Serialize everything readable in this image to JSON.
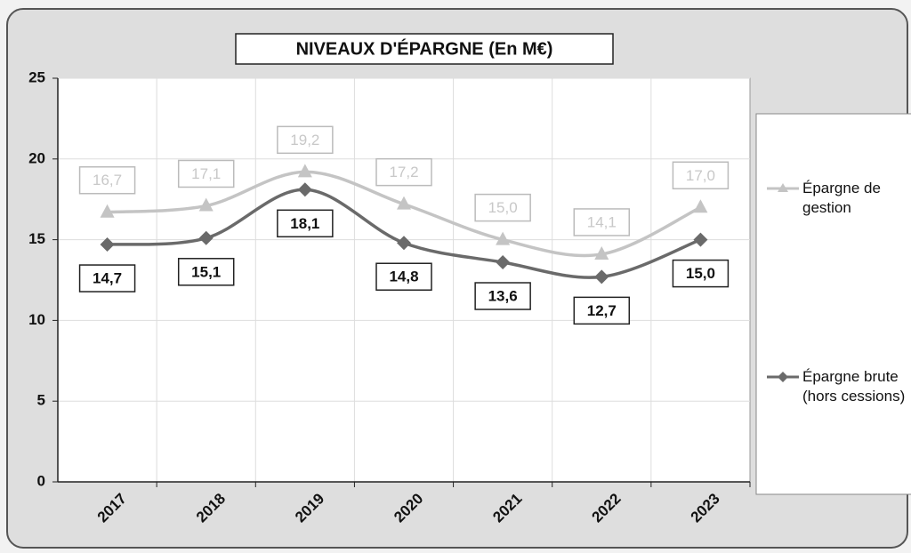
{
  "chart_data": {
    "type": "line",
    "title": "NIVEAUX D'ÉPARGNE (En M€)",
    "categories": [
      "2017",
      "2018",
      "2019",
      "2020",
      "2021",
      "2022",
      "2023"
    ],
    "series": [
      {
        "name": "Épargne de gestion",
        "color": "#c4c4c4",
        "values": [
          16.7,
          17.1,
          19.2,
          17.2,
          15.0,
          14.1,
          17.0
        ],
        "value_labels": [
          "16,7",
          "17,1",
          "19,2",
          "17,2",
          "15,0",
          "14,1",
          "17,0"
        ]
      },
      {
        "name": "Épargne brute (hors cessions)",
        "color": "#6a6a6a",
        "values": [
          14.7,
          15.1,
          18.1,
          14.8,
          13.6,
          12.7,
          15.0
        ],
        "value_labels": [
          "14,7",
          "15,1",
          "18,1",
          "14,8",
          "13,6",
          "12,7",
          "15,0"
        ]
      }
    ],
    "ylim": [
      0,
      25
    ],
    "yticks": [
      0,
      5,
      10,
      15,
      20,
      25
    ],
    "grid": true,
    "legend": "right"
  }
}
